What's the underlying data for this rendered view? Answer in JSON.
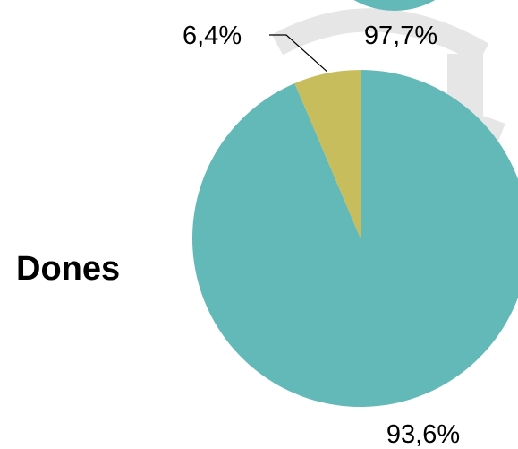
{
  "chart_data": [
    {
      "type": "pie",
      "group_label": "Dones",
      "slices": [
        {
          "value": 93.6,
          "label": "93,6%",
          "color": "#62b9b8"
        },
        {
          "value": 6.4,
          "label": "6,4%",
          "color": "#c8bd5c"
        }
      ],
      "start_angle_deg": 0,
      "direction": "clockwise"
    },
    {
      "type": "pie",
      "partially_visible": true,
      "slices": [
        {
          "value": 97.7,
          "label": "97,7%",
          "color": "#62b9b8"
        }
      ]
    }
  ],
  "watermark_color": "#e6e6e6"
}
